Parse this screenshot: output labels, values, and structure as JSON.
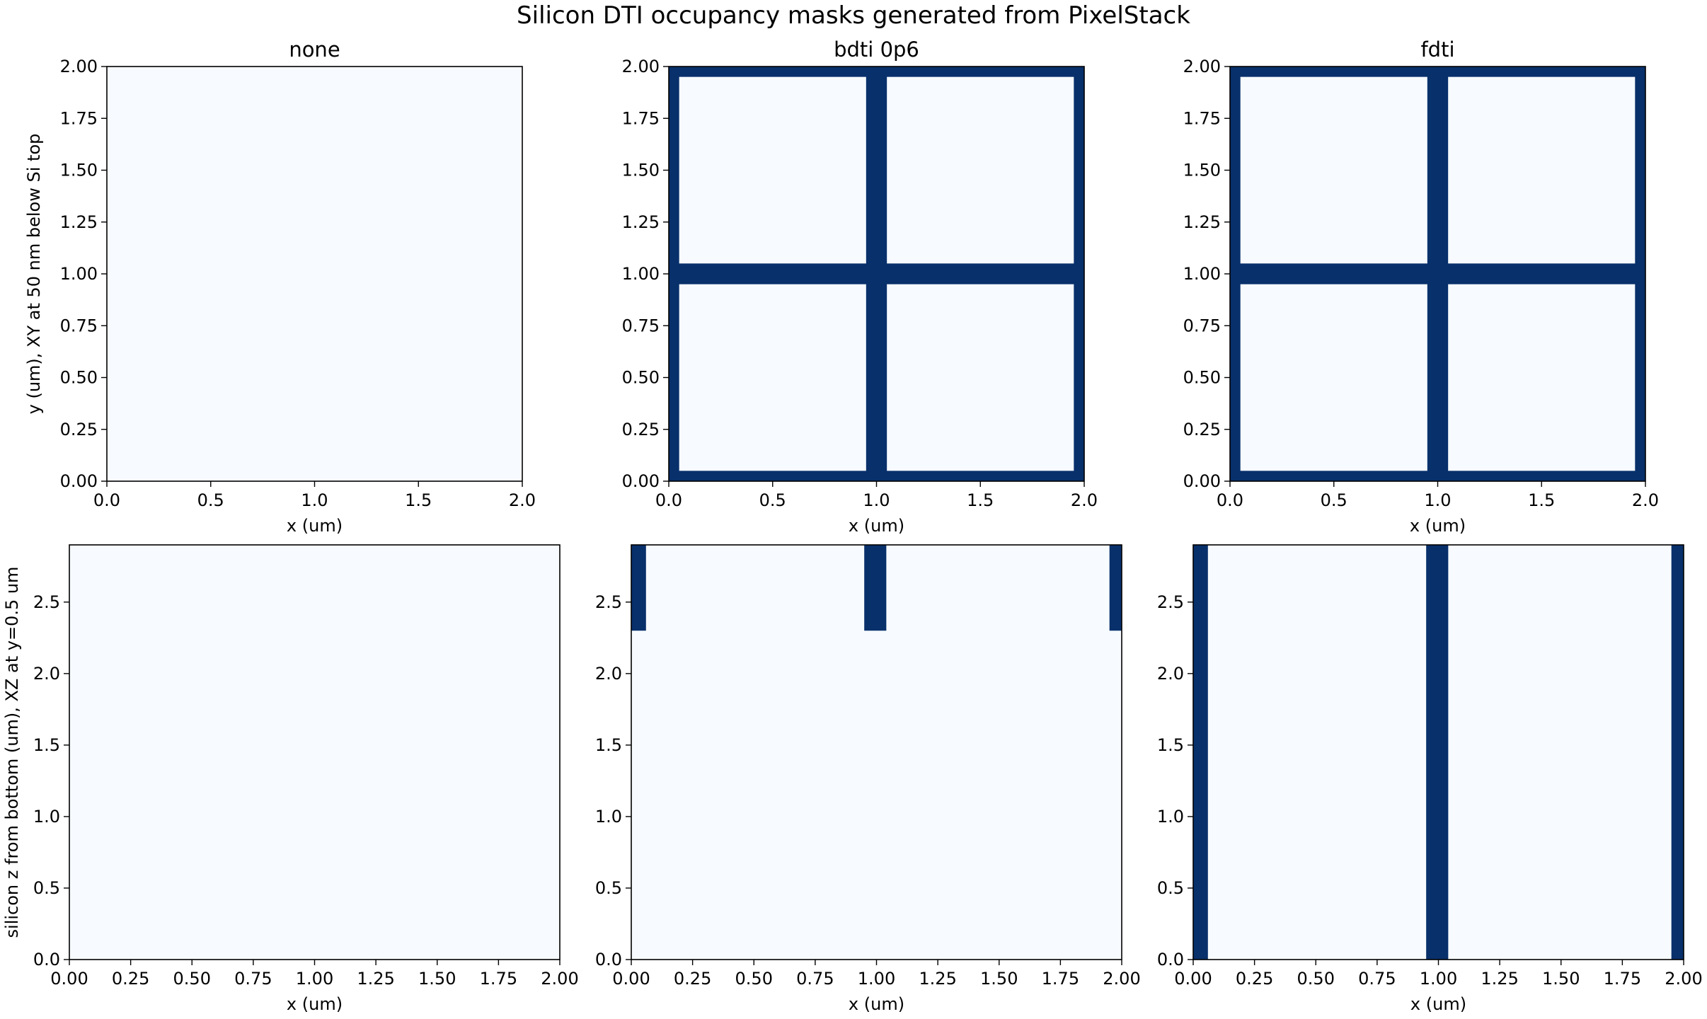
{
  "title": "Silicon DTI occupancy masks generated from PixelStack",
  "colors": {
    "empty": "#f7fbff",
    "filled": "#08306b",
    "frame": "#000000"
  },
  "chart_data": [
    {
      "type": "heatmap",
      "title": "none",
      "xlabel": "x (um)",
      "ylabel": "y (um), XY at 50 nm below Si top",
      "xlim": [
        0,
        2.0
      ],
      "ylim": [
        0,
        2.0
      ],
      "xticks": [
        "0.0",
        "0.5",
        "1.0",
        "1.5",
        "2.0"
      ],
      "yticks": [
        "0.00",
        "0.25",
        "0.50",
        "0.75",
        "1.00",
        "1.25",
        "1.50",
        "1.75",
        "2.00"
      ],
      "filled_regions": []
    },
    {
      "type": "heatmap",
      "title": "bdti 0p6",
      "xlabel": "x (um)",
      "ylabel": "",
      "xlim": [
        0,
        2.0
      ],
      "ylim": [
        0,
        2.0
      ],
      "xticks": [
        "0.0",
        "0.5",
        "1.0",
        "1.5",
        "2.0"
      ],
      "yticks": [
        "0.00",
        "0.25",
        "0.50",
        "0.75",
        "1.00",
        "1.25",
        "1.50",
        "1.75",
        "2.00"
      ],
      "filled_regions": [
        {
          "x": [
            0,
            0.05
          ],
          "y": [
            0,
            2.0
          ]
        },
        {
          "x": [
            1.95,
            2.0
          ],
          "y": [
            0,
            2.0
          ]
        },
        {
          "x": [
            0.95,
            1.05
          ],
          "y": [
            0,
            2.0
          ]
        },
        {
          "x": [
            0,
            2.0
          ],
          "y": [
            0,
            0.05
          ]
        },
        {
          "x": [
            0,
            2.0
          ],
          "y": [
            1.95,
            2.0
          ]
        },
        {
          "x": [
            0,
            2.0
          ],
          "y": [
            0.95,
            1.05
          ]
        }
      ]
    },
    {
      "type": "heatmap",
      "title": "fdti",
      "xlabel": "x (um)",
      "ylabel": "",
      "xlim": [
        0,
        2.0
      ],
      "ylim": [
        0,
        2.0
      ],
      "xticks": [
        "0.0",
        "0.5",
        "1.0",
        "1.5",
        "2.0"
      ],
      "yticks": [
        "0.00",
        "0.25",
        "0.50",
        "0.75",
        "1.00",
        "1.25",
        "1.50",
        "1.75",
        "2.00"
      ],
      "filled_regions": [
        {
          "x": [
            0,
            0.05
          ],
          "y": [
            0,
            2.0
          ]
        },
        {
          "x": [
            1.95,
            2.0
          ],
          "y": [
            0,
            2.0
          ]
        },
        {
          "x": [
            0.95,
            1.05
          ],
          "y": [
            0,
            2.0
          ]
        },
        {
          "x": [
            0,
            2.0
          ],
          "y": [
            0,
            0.05
          ]
        },
        {
          "x": [
            0,
            2.0
          ],
          "y": [
            1.95,
            2.0
          ]
        },
        {
          "x": [
            0,
            2.0
          ],
          "y": [
            0.95,
            1.05
          ]
        }
      ]
    },
    {
      "type": "heatmap",
      "title": "",
      "xlabel": "x (um)",
      "ylabel": "silicon z from bottom (um), XZ at y=0.5 um",
      "xlim": [
        0,
        2.0
      ],
      "ylim": [
        0,
        2.9
      ],
      "xticks": [
        "0.00",
        "0.25",
        "0.50",
        "0.75",
        "1.00",
        "1.25",
        "1.50",
        "1.75",
        "2.00"
      ],
      "yticks": [
        "0.0",
        "0.5",
        "1.0",
        "1.5",
        "2.0",
        "2.5"
      ],
      "filled_regions": []
    },
    {
      "type": "heatmap",
      "title": "",
      "xlabel": "x (um)",
      "ylabel": "",
      "xlim": [
        0,
        2.0
      ],
      "ylim": [
        0,
        2.9
      ],
      "xticks": [
        "0.00",
        "0.25",
        "0.50",
        "0.75",
        "1.00",
        "1.25",
        "1.50",
        "1.75",
        "2.00"
      ],
      "yticks": [
        "0.0",
        "0.5",
        "1.0",
        "1.5",
        "2.0",
        "2.5"
      ],
      "filled_regions": [
        {
          "x": [
            0,
            0.06
          ],
          "y": [
            2.3,
            2.9
          ]
        },
        {
          "x": [
            0.95,
            1.04
          ],
          "y": [
            2.3,
            2.9
          ]
        },
        {
          "x": [
            1.95,
            2.0
          ],
          "y": [
            2.3,
            2.9
          ]
        }
      ]
    },
    {
      "type": "heatmap",
      "title": "",
      "xlabel": "x (um)",
      "ylabel": "",
      "xlim": [
        0,
        2.0
      ],
      "ylim": [
        0,
        2.9
      ],
      "xticks": [
        "0.00",
        "0.25",
        "0.50",
        "0.75",
        "1.00",
        "1.25",
        "1.50",
        "1.75",
        "2.00"
      ],
      "yticks": [
        "0.0",
        "0.5",
        "1.0",
        "1.5",
        "2.0",
        "2.5"
      ],
      "filled_regions": [
        {
          "x": [
            0,
            0.06
          ],
          "y": [
            0,
            2.9
          ]
        },
        {
          "x": [
            0.95,
            1.04
          ],
          "y": [
            0,
            2.9
          ]
        },
        {
          "x": [
            1.95,
            2.0
          ],
          "y": [
            0,
            2.9
          ]
        }
      ]
    }
  ]
}
